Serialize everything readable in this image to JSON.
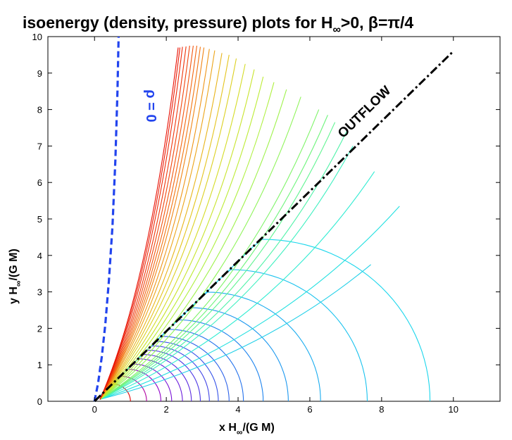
{
  "chart_data": {
    "type": "line",
    "title": "isoenergy (density, pressure) plots for H",
    "title_subscript": "∞",
    "title_tail": ">0, β=π/4",
    "xlabel": "x H",
    "xlabel_subscript": "∞",
    "xlabel_tail": "/(G M)",
    "ylabel": "y H",
    "ylabel_subscript": "∞",
    "ylabel_tail": "/(G M)",
    "xlim": [
      -1.3,
      11.3
    ],
    "ylim": [
      0,
      10
    ],
    "x_ticks": [
      0,
      2,
      4,
      6,
      8,
      10
    ],
    "x_tick_labels": [
      "0",
      "2",
      "4",
      "6",
      "8",
      "10"
    ],
    "y_ticks": [
      0,
      1,
      2,
      3,
      4,
      5,
      6,
      7,
      8,
      9,
      10
    ],
    "y_tick_labels": [
      "0",
      "1",
      "2",
      "3",
      "4",
      "5",
      "6",
      "7",
      "8",
      "9",
      "10"
    ],
    "grid": false,
    "zero_density_curve": {
      "name": "rho = 0",
      "label": "ρ = 0",
      "style": "dashed",
      "color": "#2244ee",
      "points": [
        [
          0,
          0
        ],
        [
          0.1,
          0.5
        ],
        [
          0.2,
          1.2
        ],
        [
          0.3,
          2.1
        ],
        [
          0.4,
          3.3
        ],
        [
          0.5,
          4.8
        ],
        [
          0.58,
          6.6
        ],
        [
          0.64,
          8.5
        ],
        [
          0.67,
          10
        ]
      ]
    },
    "outflow_line": {
      "name": "outflow",
      "label": "OUTFLOW",
      "style": "dash-dot",
      "color": "#000000",
      "x": [
        0,
        10
      ],
      "y": [
        0,
        9.6
      ]
    },
    "closed_contours": {
      "description": "semicircle-like isoenergy contours below the outflow line",
      "x_right_intercepts": [
        1.0,
        1.45,
        1.85,
        2.15,
        2.45,
        2.7,
        2.95,
        3.2,
        3.45,
        3.75,
        4.15,
        4.7,
        5.4,
        6.3,
        7.6,
        9.35
      ],
      "colors": [
        "#e00000",
        "#b000a0",
        "#9000c8",
        "#7a14d6",
        "#6a1ddc",
        "#5a2ae0",
        "#4c37e4",
        "#4044e6",
        "#3552e8",
        "#2c62ea",
        "#2472ec",
        "#1e84ee",
        "#1c98ef",
        "#1aacef",
        "#1ac2ee",
        "#1ad6ec"
      ]
    },
    "open_contours": {
      "description": "isoenergy curves in the outflow region, rotating from the outflow line toward the rho=0 boundary",
      "end_points": [
        [
          7.7,
          3.75
        ],
        [
          8.5,
          5.35
        ],
        [
          7.8,
          6.3
        ],
        [
          7.2,
          7.0
        ],
        [
          7.05,
          7.45
        ],
        [
          6.7,
          7.65
        ],
        [
          6.5,
          7.85
        ],
        [
          6.25,
          8.0
        ],
        [
          5.75,
          8.35
        ],
        [
          5.35,
          8.55
        ],
        [
          5.0,
          8.75
        ],
        [
          4.7,
          8.9
        ],
        [
          4.45,
          9.1
        ],
        [
          4.2,
          9.25
        ],
        [
          3.95,
          9.4
        ],
        [
          3.75,
          9.5
        ],
        [
          3.55,
          9.55
        ],
        [
          3.35,
          9.62
        ],
        [
          3.2,
          9.66
        ],
        [
          3.05,
          9.7
        ],
        [
          2.95,
          9.72
        ],
        [
          2.85,
          9.75
        ],
        [
          2.75,
          9.75
        ],
        [
          2.65,
          9.75
        ],
        [
          2.55,
          9.73
        ],
        [
          2.45,
          9.72
        ],
        [
          2.38,
          9.7
        ],
        [
          2.33,
          9.7
        ]
      ],
      "colors": [
        "#22d0e8",
        "#22e0e0",
        "#30ecd2",
        "#3ef0c0",
        "#4ef2a8",
        "#5ef490",
        "#6ef47c",
        "#7ef468",
        "#8ef458",
        "#9ef24a",
        "#aef03e",
        "#bcec34",
        "#c8e42c",
        "#d4dc26",
        "#dcd022",
        "#e4c41e",
        "#e8b41a",
        "#eca418",
        "#ee9416",
        "#f08414",
        "#f27412",
        "#f26410",
        "#f2540e",
        "#f0440c",
        "#ee340a",
        "#ec2808",
        "#ea1c06",
        "#e81004"
      ]
    }
  }
}
